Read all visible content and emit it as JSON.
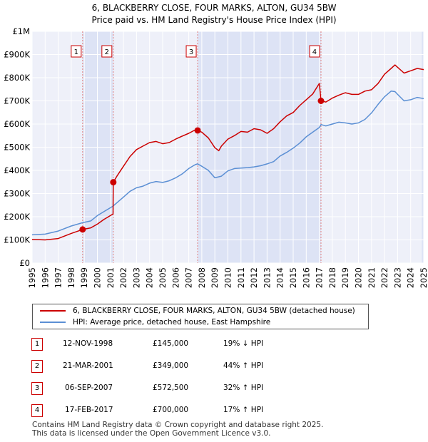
{
  "title": "6, BLACKBERRY CLOSE, FOUR MARKS, ALTON, GU34 5BW",
  "subtitle": "Price paid vs. HM Land Registry's House Price Index (HPI)",
  "chart_data": {
    "type": "line",
    "title": "6, BLACKBERRY CLOSE, FOUR MARKS, ALTON, GU34 5BW",
    "subtitle": "Price paid vs. HM Land Registry's House Price Index (HPI)",
    "xlim": [
      1995,
      2025
    ],
    "ylim": [
      0,
      1000000
    ],
    "x_ticks": [
      "1995",
      "1996",
      "1997",
      "1998",
      "1999",
      "2000",
      "2001",
      "2002",
      "2003",
      "2004",
      "2005",
      "2006",
      "2007",
      "2008",
      "2009",
      "2010",
      "2011",
      "2012",
      "2013",
      "2014",
      "2015",
      "2016",
      "2017",
      "2018",
      "2019",
      "2020",
      "2021",
      "2022",
      "2023",
      "2024",
      "2025"
    ],
    "y_ticks": [
      {
        "value": 0,
        "label": "£0"
      },
      {
        "value": 100000,
        "label": "£100K"
      },
      {
        "value": 200000,
        "label": "£200K"
      },
      {
        "value": 300000,
        "label": "£300K"
      },
      {
        "value": 400000,
        "label": "£400K"
      },
      {
        "value": 500000,
        "label": "£500K"
      },
      {
        "value": 600000,
        "label": "£600K"
      },
      {
        "value": 700000,
        "label": "£700K"
      },
      {
        "value": 800000,
        "label": "£800K"
      },
      {
        "value": 900000,
        "label": "£900K"
      },
      {
        "value": 1000000,
        "label": "£1M"
      }
    ],
    "grid": true,
    "series": [
      {
        "name": "6, BLACKBERRY CLOSE, FOUR MARKS, ALTON, GU34 5BW (detached house)",
        "color": "#cc0000",
        "x": [
          1995.0,
          1996.0,
          1997.0,
          1998.0,
          1998.87,
          1999.5,
          2000.0,
          2000.5,
          2001.2,
          2001.22,
          2001.5,
          2002.0,
          2002.5,
          2003.0,
          2003.5,
          2004.0,
          2004.5,
          2005.0,
          2005.5,
          2006.0,
          2006.5,
          2007.0,
          2007.5,
          2007.68,
          2008.0,
          2008.5,
          2009.0,
          2009.3,
          2009.5,
          2010.0,
          2010.5,
          2011.0,
          2011.5,
          2012.0,
          2012.5,
          2013.0,
          2013.5,
          2014.0,
          2014.5,
          2015.0,
          2015.5,
          2016.0,
          2016.5,
          2017.0,
          2017.13,
          2017.5,
          2018.0,
          2018.5,
          2019.0,
          2019.5,
          2020.0,
          2020.5,
          2021.0,
          2021.5,
          2022.0,
          2022.5,
          2022.8,
          2023.0,
          2023.5,
          2024.0,
          2024.5,
          2025.0
        ],
        "values": [
          102000,
          100000,
          106000,
          128000,
          145000,
          152000,
          168000,
          188000,
          212000,
          349000,
          375000,
          418000,
          460000,
          490000,
          505000,
          520000,
          525000,
          515000,
          520000,
          535000,
          548000,
          560000,
          575000,
          572500,
          565000,
          540000,
          498000,
          485000,
          505000,
          535000,
          550000,
          568000,
          565000,
          580000,
          575000,
          560000,
          580000,
          610000,
          635000,
          650000,
          680000,
          705000,
          730000,
          775000,
          700000,
          695000,
          712000,
          725000,
          735000,
          728000,
          728000,
          742000,
          748000,
          775000,
          815000,
          840000,
          855000,
          845000,
          820000,
          830000,
          840000,
          835000
        ]
      },
      {
        "name": "HPI: Average price, detached house, East Hampshire",
        "color": "#5b8fd4",
        "x": [
          1995.0,
          1996.0,
          1997.0,
          1998.0,
          1998.87,
          1999.5,
          2000.0,
          2000.5,
          2001.2,
          2002.0,
          2002.5,
          2003.0,
          2003.5,
          2004.0,
          2004.5,
          2005.0,
          2005.5,
          2006.0,
          2006.5,
          2007.0,
          2007.5,
          2007.68,
          2008.0,
          2008.5,
          2009.0,
          2009.5,
          2010.0,
          2010.5,
          2011.0,
          2011.5,
          2012.0,
          2012.5,
          2013.0,
          2013.5,
          2014.0,
          2014.5,
          2015.0,
          2015.5,
          2016.0,
          2016.5,
          2017.0,
          2017.13,
          2017.5,
          2018.0,
          2018.5,
          2019.0,
          2019.5,
          2020.0,
          2020.5,
          2021.0,
          2021.5,
          2022.0,
          2022.5,
          2022.8,
          2023.0,
          2023.5,
          2024.0,
          2024.5,
          2025.0
        ],
        "values": [
          122000,
          125000,
          138000,
          160000,
          174000,
          182000,
          205000,
          222000,
          246000,
          285000,
          310000,
          325000,
          332000,
          345000,
          352000,
          348000,
          355000,
          368000,
          385000,
          408000,
          425000,
          428000,
          418000,
          400000,
          368000,
          375000,
          398000,
          408000,
          410000,
          412000,
          415000,
          420000,
          428000,
          438000,
          462000,
          478000,
          496000,
          518000,
          545000,
          565000,
          585000,
          598000,
          592000,
          600000,
          608000,
          605000,
          600000,
          605000,
          620000,
          648000,
          685000,
          718000,
          742000,
          740000,
          728000,
          700000,
          705000,
          715000,
          710000
        ]
      }
    ],
    "transactions": [
      {
        "id": "1",
        "x": 1998.87,
        "date": "12-NOV-1998",
        "price": 145000,
        "price_label": "£145,000",
        "hpi_diff": "19% ↓ HPI"
      },
      {
        "id": "2",
        "x": 2001.22,
        "date": "21-MAR-2001",
        "price": 349000,
        "price_label": "£349,000",
        "hpi_diff": "44% ↑ HPI"
      },
      {
        "id": "3",
        "x": 2007.68,
        "date": "06-SEP-2007",
        "price": 572500,
        "price_label": "£572,500",
        "hpi_diff": "32% ↑ HPI"
      },
      {
        "id": "4",
        "x": 2017.13,
        "date": "17-FEB-2017",
        "price": 700000,
        "price_label": "£700,000",
        "hpi_diff": "17% ↑ HPI"
      }
    ],
    "legend": [
      {
        "label": "6, BLACKBERRY CLOSE, FOUR MARKS, ALTON, GU34 5BW (detached house)",
        "color": "#cc0000"
      },
      {
        "label": "HPI: Average price, detached house, East Hampshire",
        "color": "#5b8fd4"
      }
    ],
    "colors": {
      "plot_bg": "#eef0f9",
      "highlight_band": "#dde3f5",
      "grid": "#ffffff",
      "marker_border": "#cc0000",
      "vline": "#e08080"
    }
  },
  "legend": {
    "entries": [
      {
        "label": "6, BLACKBERRY CLOSE, FOUR MARKS, ALTON, GU34 5BW (detached house)",
        "color": "#cc0000"
      },
      {
        "label": "HPI: Average price, detached house, East Hampshire",
        "color": "#5b8fd4"
      }
    ]
  },
  "table": {
    "rows": [
      {
        "id": "1",
        "date": "12-NOV-1998",
        "price": "£145,000",
        "hpi": "19% ↓ HPI"
      },
      {
        "id": "2",
        "date": "21-MAR-2001",
        "price": "£349,000",
        "hpi": "44% ↑ HPI"
      },
      {
        "id": "3",
        "date": "06-SEP-2007",
        "price": "£572,500",
        "hpi": "32% ↑ HPI"
      },
      {
        "id": "4",
        "date": "17-FEB-2017",
        "price": "£700,000",
        "hpi": "17% ↑ HPI"
      }
    ]
  },
  "footer": {
    "line1": "Contains HM Land Registry data © Crown copyright and database right 2025.",
    "line2": "This data is licensed under the Open Government Licence v3.0."
  }
}
